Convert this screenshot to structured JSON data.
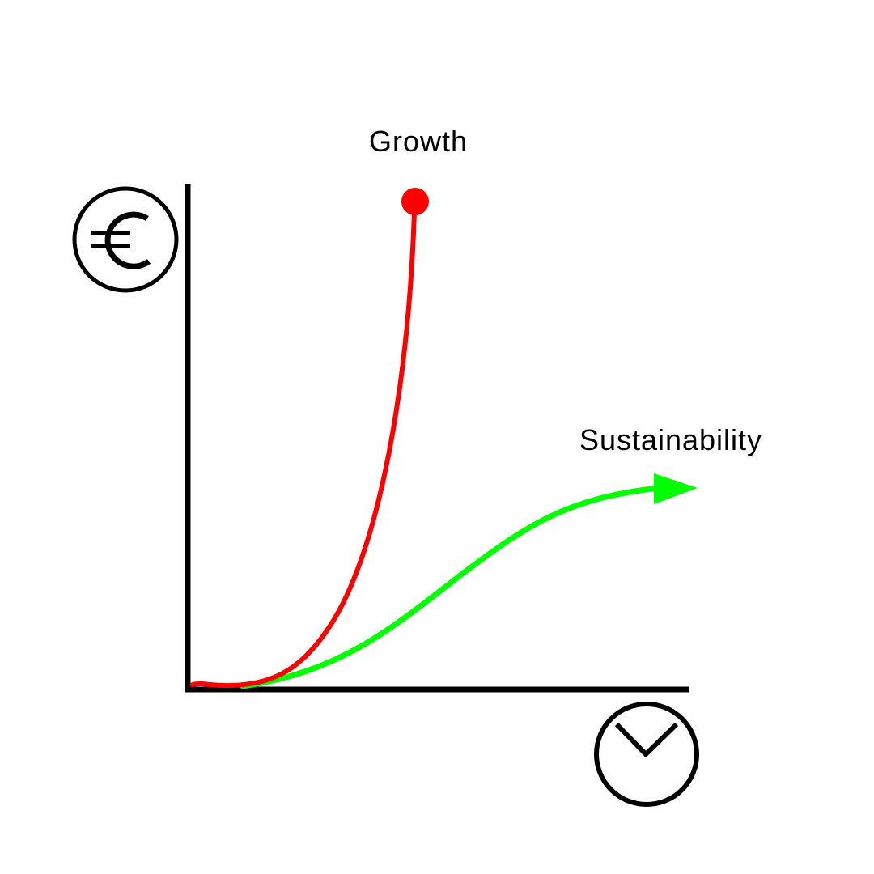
{
  "colors": {
    "axis": "#000000",
    "growth": "#ff0000",
    "sustainability": "#00ff00",
    "background": "#ffffff"
  },
  "icons": {
    "y_axis": "euro-icon",
    "x_axis": "clock-icon"
  },
  "curves": {
    "growth": {
      "label": "Growth",
      "end_marker": "dot"
    },
    "sustainability": {
      "label": "Sustainability",
      "end_marker": "arrow"
    }
  }
}
